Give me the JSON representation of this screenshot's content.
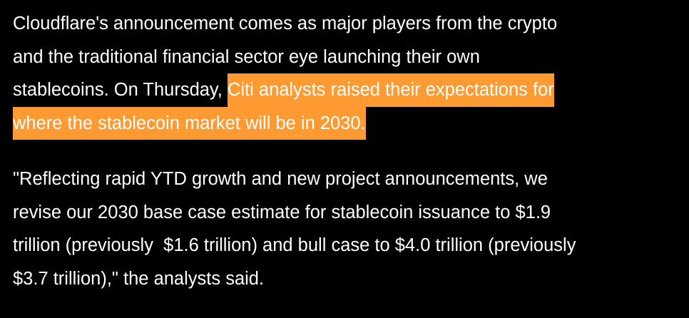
{
  "paragraphs": [
    {
      "lines": [
        [
          {
            "text": "Cloudflare's announcement comes as major players from the crypto"
          }
        ],
        [
          {
            "text": "and the traditional financial sector eye launching their own"
          }
        ],
        [
          {
            "text": "stablecoins. On Thursday, "
          },
          {
            "text": "Citi analysts raised their expectations for",
            "highlight": true
          }
        ],
        [
          {
            "text": "where the stablecoin market will be in 2030.",
            "highlight": true
          }
        ]
      ]
    },
    {
      "lines": [
        [
          {
            "text": "\"Reflecting rapid YTD growth and new project announcements, we"
          }
        ],
        [
          {
            "text": "revise our 2030 base case estimate for stablecoin issuance to $1.9"
          }
        ],
        [
          {
            "text": "trillion (previously  $1.6 trillion) and bull case to $4.0 trillion (previously"
          }
        ],
        [
          {
            "text": "$3.7 trillion),\" the analysts said."
          }
        ]
      ]
    }
  ]
}
